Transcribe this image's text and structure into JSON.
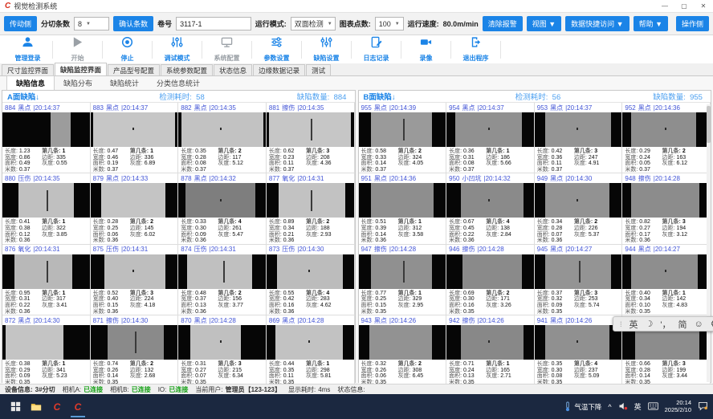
{
  "window": {
    "title": "视觉检测系统"
  },
  "toolbar": {
    "side_left": "传动侧",
    "slit_count_label": "分切条数",
    "slit_count_value": "8",
    "confirm_button": "确认条数",
    "roll_label": "卷号",
    "roll_value": "3117-1",
    "mode_label": "运行模式:",
    "mode_value": "双面检测",
    "points_label": "图表点数:",
    "points_value": "100",
    "speed_label": "运行速度:",
    "speed_value": "80.0m/min",
    "clear_alarm": "清除报警",
    "view_menu": "视图 ▼",
    "quick_access": "数据快捷访问 ▼",
    "help_menu": "帮助 ▼",
    "side_right": "操作侧"
  },
  "actions": [
    {
      "label": "管理登录",
      "icon": "user-icon",
      "enabled": true
    },
    {
      "label": "开始",
      "icon": "play-icon",
      "enabled": false
    },
    {
      "label": "停止",
      "icon": "stop-icon",
      "enabled": true
    },
    {
      "label": "调试模式",
      "icon": "debug-sliders-icon",
      "enabled": true
    },
    {
      "label": "系统配置",
      "icon": "monitor-icon",
      "enabled": false
    },
    {
      "label": "参数设置",
      "icon": "param-sliders-icon",
      "enabled": true
    },
    {
      "label": "缺陷设置",
      "icon": "defect-sliders-icon",
      "enabled": true
    },
    {
      "label": "日志记录",
      "icon": "log-icon",
      "enabled": true
    },
    {
      "label": "录像",
      "icon": "camera-icon",
      "enabled": true
    },
    {
      "label": "退出程序",
      "icon": "exit-icon",
      "enabled": true
    }
  ],
  "main_tabs": {
    "active": 1,
    "items": [
      "尺寸监控界面",
      "缺陷监控界面",
      "产品型号配置",
      "系统参数配置",
      "状态信息",
      "边缘数据记录",
      "测试"
    ]
  },
  "sub_tabs": {
    "active": 0,
    "items": [
      "缺陷信息",
      "缺陷分布",
      "缺陷统计",
      "分类信息统计"
    ]
  },
  "stat_labels": {
    "length": "长度:",
    "width": "宽度:",
    "area": "面积:",
    "meters": "米数:",
    "strip": "第几条:",
    "margin": "边距:",
    "gray": "灰度:"
  },
  "panels": [
    {
      "title": "A面缺陷↓",
      "time_label": "检测耗时:",
      "time_value": "58",
      "count_label": "缺陷数量:",
      "count_value": "884",
      "cells": [
        {
          "id": "884",
          "type": "黑点",
          "time": "20:14:37",
          "stats": {
            "length": "1.23",
            "width": "0.86",
            "area": "0.49",
            "meters": "0.37",
            "strip": "1",
            "margin": "335",
            "gray": "0.55"
          },
          "img": {
            "l": 55,
            "r": 22,
            "tone": "#9c9c9c",
            "mark": "none"
          }
        },
        {
          "id": "883",
          "type": "黑点",
          "time": "20:14:37",
          "stats": {
            "length": "0.47",
            "width": "0.46",
            "area": "0.19",
            "meters": "0.37",
            "strip": "1",
            "margin": "336",
            "gray": "6.89"
          },
          "img": {
            "l": 3,
            "r": 3,
            "tone": "#c6c6c6",
            "mark": "dot"
          }
        },
        {
          "id": "882",
          "type": "黑点",
          "time": "20:14:35",
          "stats": {
            "length": "0.35",
            "width": "0.28",
            "area": "0.08",
            "meters": "0.37",
            "strip": "2",
            "margin": "117",
            "gray": "5.12"
          },
          "img": {
            "l": 3,
            "r": 3,
            "tone": "#c2c2c2",
            "mark": "dot"
          }
        },
        {
          "id": "881",
          "type": "擦伤",
          "time": "20:14:35",
          "stats": {
            "length": "0.62",
            "width": "0.23",
            "area": "0.11",
            "meters": "0.37",
            "strip": "3",
            "margin": "208",
            "gray": "4.36"
          },
          "img": {
            "l": 3,
            "r": 3,
            "tone": "#c6c6c6",
            "mark": "line"
          }
        },
        {
          "id": "880",
          "type": "压伤",
          "time": "20:14:35",
          "stats": {
            "length": "0.41",
            "width": "0.38",
            "area": "0.12",
            "meters": "0.36",
            "strip": "1",
            "margin": "322",
            "gray": "3.85"
          },
          "img": {
            "l": 18,
            "r": 18,
            "tone": "#c0c0c0",
            "mark": "line"
          }
        },
        {
          "id": "879",
          "type": "黑点",
          "time": "20:14:33",
          "stats": {
            "length": "0.28",
            "width": "0.25",
            "area": "0.06",
            "meters": "0.36",
            "strip": "2",
            "margin": "145",
            "gray": "6.02"
          },
          "img": {
            "l": 12,
            "r": 14,
            "tone": "#c4c4c4",
            "mark": "none"
          }
        },
        {
          "id": "878",
          "type": "黑点",
          "time": "20:14:32",
          "stats": {
            "length": "0.33",
            "width": "0.30",
            "area": "0.09",
            "meters": "0.36",
            "strip": "4",
            "margin": "261",
            "gray": "5.47"
          },
          "img": {
            "l": 8,
            "r": 12,
            "tone": "#7e7e7e",
            "mark": "dot"
          }
        },
        {
          "id": "877",
          "type": "氧化",
          "time": "20:14:31",
          "stats": {
            "length": "0.89",
            "width": "0.34",
            "area": "0.21",
            "meters": "0.36",
            "strip": "2",
            "margin": "188",
            "gray": "2.93"
          },
          "img": {
            "l": 14,
            "r": 10,
            "tone": "#c2c2c2",
            "mark": "line"
          }
        },
        {
          "id": "876",
          "type": "氧化",
          "time": "20:14:31",
          "stats": {
            "length": "0.95",
            "width": "0.31",
            "area": "0.22",
            "meters": "0.36",
            "strip": "1",
            "margin": "317",
            "gray": "3.41"
          },
          "img": {
            "l": 14,
            "r": 20,
            "tone": "#b8b8b8",
            "mark": "line"
          }
        },
        {
          "id": "875",
          "type": "压伤",
          "time": "20:14:31",
          "stats": {
            "length": "0.52",
            "width": "0.40",
            "area": "0.15",
            "meters": "0.36",
            "strip": "3",
            "margin": "224",
            "gray": "4.18"
          },
          "img": {
            "l": 16,
            "r": 14,
            "tone": "#bebebe",
            "mark": "dot"
          }
        },
        {
          "id": "874",
          "type": "压伤",
          "time": "20:14:31",
          "stats": {
            "length": "0.48",
            "width": "0.37",
            "area": "0.13",
            "meters": "0.36",
            "strip": "2",
            "margin": "156",
            "gray": "3.77"
          },
          "img": {
            "l": 10,
            "r": 16,
            "tone": "#c0c0c0",
            "mark": "line"
          }
        },
        {
          "id": "873",
          "type": "压伤",
          "time": "20:14:30",
          "stats": {
            "length": "0.55",
            "width": "0.42",
            "area": "0.16",
            "meters": "0.36",
            "strip": "4",
            "margin": "283",
            "gray": "4.62"
          },
          "img": {
            "l": 12,
            "r": 12,
            "tone": "#bcbcbc",
            "mark": "dot"
          }
        },
        {
          "id": "872",
          "type": "黑点",
          "time": "20:14:30",
          "stats": {
            "length": "0.38",
            "width": "0.29",
            "area": "0.09",
            "meters": "0.35",
            "strip": "1",
            "margin": "341",
            "gray": "5.23"
          },
          "img": {
            "l": 4,
            "r": 30,
            "tone": "#c4c4c4",
            "mark": "none"
          }
        },
        {
          "id": "871",
          "type": "擦伤",
          "time": "20:14:30",
          "stats": {
            "length": "0.74",
            "width": "0.26",
            "area": "0.14",
            "meters": "0.35",
            "strip": "2",
            "margin": "132",
            "gray": "2.68"
          },
          "img": {
            "l": 20,
            "r": 16,
            "tone": "#8a8a8a",
            "mark": "line"
          }
        },
        {
          "id": "870",
          "type": "黑点",
          "time": "20:14:28",
          "stats": {
            "length": "0.31",
            "width": "0.27",
            "area": "0.07",
            "meters": "0.35",
            "strip": "3",
            "margin": "215",
            "gray": "6.34"
          },
          "img": {
            "l": 14,
            "r": 28,
            "tone": "#c0c0c0",
            "mark": "dot"
          }
        },
        {
          "id": "869",
          "type": "黑点",
          "time": "20:14:28",
          "stats": {
            "length": "0.44",
            "width": "0.35",
            "area": "0.11",
            "meters": "0.35",
            "strip": "1",
            "margin": "298",
            "gray": "5.81"
          },
          "img": {
            "l": 10,
            "r": 12,
            "tone": "#c2c2c2",
            "mark": "dot"
          }
        }
      ]
    },
    {
      "title": "B面缺陷↓",
      "time_label": "检测耗时:",
      "time_value": "56",
      "count_label": "缺陷数量:",
      "count_value": "955",
      "cells": [
        {
          "id": "955",
          "type": "黑点",
          "time": "20:14:39",
          "stats": {
            "length": "0.58",
            "width": "0.33",
            "area": "0.14",
            "meters": "0.37",
            "strip": "2",
            "margin": "324",
            "gray": "4.05"
          },
          "img": {
            "l": 14,
            "r": 16,
            "tone": "#9a9a9a",
            "mark": "line"
          }
        },
        {
          "id": "954",
          "type": "黑点",
          "time": "20:14:37",
          "stats": {
            "length": "0.36",
            "width": "0.31",
            "area": "0.08",
            "meters": "0.37",
            "strip": "1",
            "margin": "186",
            "gray": "5.66"
          },
          "img": {
            "l": 10,
            "r": 14,
            "tone": "#909090",
            "mark": "dot"
          }
        },
        {
          "id": "953",
          "type": "黑点",
          "time": "20:14:37",
          "stats": {
            "length": "0.42",
            "width": "0.36",
            "area": "0.11",
            "meters": "0.37",
            "strip": "3",
            "margin": "247",
            "gray": "4.91"
          },
          "img": {
            "l": 12,
            "r": 12,
            "tone": "#949494",
            "mark": "dot"
          }
        },
        {
          "id": "952",
          "type": "黑点",
          "time": "20:14:36",
          "stats": {
            "length": "0.29",
            "width": "0.24",
            "area": "0.05",
            "meters": "0.37",
            "strip": "2",
            "margin": "163",
            "gray": "6.12"
          },
          "img": {
            "l": 10,
            "r": 16,
            "tone": "#8e8e8e",
            "mark": "dot"
          }
        },
        {
          "id": "951",
          "type": "黑点",
          "time": "20:14:36",
          "stats": {
            "length": "0.51",
            "width": "0.39",
            "area": "0.14",
            "meters": "0.36",
            "strip": "1",
            "margin": "312",
            "gray": "3.58"
          },
          "img": {
            "l": 14,
            "r": 14,
            "tone": "#8e8e8e",
            "mark": "none"
          }
        },
        {
          "id": "950",
          "type": "小凹坑",
          "time": "20:14:32",
          "stats": {
            "length": "0.67",
            "width": "0.45",
            "area": "0.22",
            "meters": "0.36",
            "strip": "4",
            "margin": "138",
            "gray": "2.84"
          },
          "img": {
            "l": 16,
            "r": 12,
            "tone": "#8a8a8a",
            "mark": "dot"
          }
        },
        {
          "id": "949",
          "type": "黑点",
          "time": "20:14:30",
          "stats": {
            "length": "0.34",
            "width": "0.28",
            "area": "0.07",
            "meters": "0.36",
            "strip": "2",
            "margin": "226",
            "gray": "5.37"
          },
          "img": {
            "l": 12,
            "r": 14,
            "tone": "#929292",
            "mark": "dot"
          }
        },
        {
          "id": "948",
          "type": "擦伤",
          "time": "20:14:28",
          "stats": {
            "length": "0.82",
            "width": "0.27",
            "area": "0.17",
            "meters": "0.36",
            "strip": "3",
            "margin": "194",
            "gray": "3.12"
          },
          "img": {
            "l": 10,
            "r": 12,
            "tone": "#8c8c8c",
            "mark": "none"
          }
        },
        {
          "id": "947",
          "type": "擦伤",
          "time": "20:14:28",
          "stats": {
            "length": "0.77",
            "width": "0.25",
            "area": "0.15",
            "meters": "0.35",
            "strip": "1",
            "margin": "329",
            "gray": "2.95"
          },
          "img": {
            "l": 14,
            "r": 16,
            "tone": "#909090",
            "mark": "line"
          }
        },
        {
          "id": "946",
          "type": "擦伤",
          "time": "20:14:28",
          "stats": {
            "length": "0.69",
            "width": "0.30",
            "area": "0.16",
            "meters": "0.35",
            "strip": "2",
            "margin": "171",
            "gray": "3.26"
          },
          "img": {
            "l": 18,
            "r": 14,
            "tone": "#8a8a8a",
            "mark": "none"
          }
        },
        {
          "id": "945",
          "type": "黑点",
          "time": "20:14:27",
          "stats": {
            "length": "0.37",
            "width": "0.32",
            "area": "0.09",
            "meters": "0.35",
            "strip": "3",
            "margin": "253",
            "gray": "5.74"
          },
          "img": {
            "l": 12,
            "r": 12,
            "tone": "#949494",
            "mark": "line"
          }
        },
        {
          "id": "944",
          "type": "黑点",
          "time": "20:14:27",
          "stats": {
            "length": "0.40",
            "width": "0.34",
            "area": "0.10",
            "meters": "0.35",
            "strip": "1",
            "margin": "142",
            "gray": "4.83"
          },
          "img": {
            "l": 10,
            "r": 14,
            "tone": "#8e8e8e",
            "mark": "dot"
          }
        },
        {
          "id": "943",
          "type": "黑点",
          "time": "20:14:26",
          "stats": {
            "length": "0.32",
            "width": "0.26",
            "area": "0.06",
            "meters": "0.35",
            "strip": "2",
            "margin": "308",
            "gray": "6.45"
          },
          "img": {
            "l": 12,
            "r": 16,
            "tone": "#929292",
            "mark": "none"
          }
        },
        {
          "id": "942",
          "type": "擦伤",
          "time": "20:14:26",
          "stats": {
            "length": "0.71",
            "width": "0.24",
            "area": "0.13",
            "meters": "0.35",
            "strip": "1",
            "margin": "165",
            "gray": "2.71"
          },
          "img": {
            "l": 16,
            "r": 12,
            "tone": "#888888",
            "mark": "dot"
          }
        },
        {
          "id": "941",
          "type": "黑点",
          "time": "20:14:26",
          "stats": {
            "length": "0.35",
            "width": "0.30",
            "area": "0.08",
            "meters": "0.35",
            "strip": "4",
            "margin": "237",
            "gray": "5.09"
          },
          "img": {
            "l": 12,
            "r": 14,
            "tone": "#909090",
            "mark": "dot"
          }
        },
        {
          "id": "940",
          "type": "擦伤",
          "time": "20:14:26",
          "stats": {
            "length": "0.66",
            "width": "0.28",
            "area": "0.14",
            "meters": "0.35",
            "strip": "3",
            "margin": "199",
            "gray": "3.44"
          },
          "img": {
            "l": 14,
            "r": 12,
            "tone": "#8c8c8c",
            "mark": "none"
          }
        }
      ]
    }
  ],
  "statusbar": {
    "device_label": "设备信息:",
    "device_value": "3#分切",
    "camA_label": "相机A:",
    "camA_value": "已连接",
    "camB_label": "相机B:",
    "camB_value": "已连接",
    "io_label": "IO:",
    "io_value": "已连接",
    "user_label": "当前用户:",
    "user_value": "管理员【123-123】",
    "display_label": "显示耗时:",
    "display_value": "4ms",
    "status_label": "状态信息:"
  },
  "taskbar": {
    "weather": "气温下降",
    "tray_expand": "^",
    "lang": "英",
    "time": "20:14",
    "date": "2025/2/10"
  },
  "ime_bar": {
    "items": [
      "英",
      "☽",
      "'，",
      "简",
      "☺",
      "⚙"
    ]
  },
  "colors": {
    "accent": "#1b84e7",
    "cell_header_blue": "#4053d6",
    "value_blue": "#4da0f0",
    "connected_green": "#15a015",
    "taskbar_bg": "#1b2840"
  }
}
